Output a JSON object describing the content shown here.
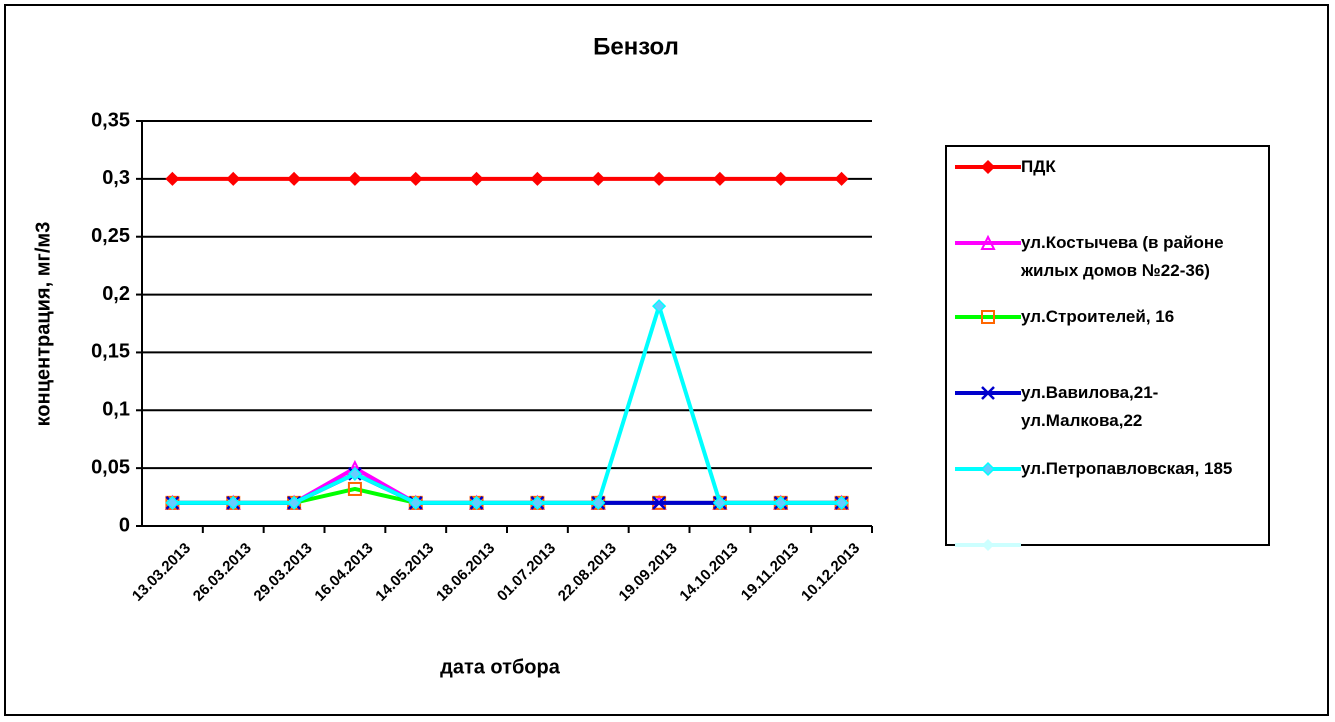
{
  "chart_data": {
    "type": "line",
    "title": "Бензол",
    "x_label": "дата отбора",
    "y_label": "концентрация, мг/м3",
    "categories": [
      "13.03.2013",
      "26.03.2013",
      "29.03.2013",
      "16.04.2013",
      "14.05.2013",
      "18.06.2013",
      "01.07.2013",
      "22.08.2013",
      "19.09.2013",
      "14.10.2013",
      "19.11.2013",
      "10.12.2013"
    ],
    "ylim": [
      0,
      0.35
    ],
    "yticks": [
      0,
      {
        "value": 0.05,
        "label": "0,05"
      },
      {
        "value": 0.1,
        "label": "0,1"
      },
      {
        "value": 0.15,
        "label": "0,15"
      },
      {
        "value": 0.2,
        "label": "0,2"
      },
      {
        "value": 0.25,
        "label": "0,25"
      },
      {
        "value": 0.3,
        "label": "0,3"
      },
      {
        "value": 0.35,
        "label": "0,35"
      }
    ],
    "grid": true,
    "legend": "right",
    "series": [
      {
        "name": "ПДК",
        "color": "#ff0000",
        "marker": "diamond",
        "values": [
          0.3,
          0.3,
          0.3,
          0.3,
          0.3,
          0.3,
          0.3,
          0.3,
          0.3,
          0.3,
          0.3,
          0.3
        ]
      },
      {
        "name": "ул.Костычева (в районе жилых домов №22-36)",
        "color": "#ff00ff",
        "marker": "triangle",
        "values": [
          0.02,
          0.02,
          0.02,
          0.05,
          0.02,
          0.02,
          0.02,
          0.02,
          0.02,
          0.02,
          0.02,
          0.02
        ]
      },
      {
        "name": "ул.Строителей, 16",
        "color": "#00ff00",
        "marker": "square",
        "values": [
          0.02,
          0.02,
          0.02,
          0.032,
          0.02,
          0.02,
          0.02,
          0.02,
          0.02,
          0.02,
          0.02,
          0.02
        ]
      },
      {
        "name": "ул.Вавилова,21-ул.Малкова,22",
        "color": "#0000cc",
        "marker": "x",
        "values": [
          0.02,
          0.02,
          0.02,
          0.045,
          0.02,
          0.02,
          0.02,
          0.02,
          0.02,
          0.02,
          0.02,
          0.02
        ]
      },
      {
        "name": "ул.Петропавловская, 185",
        "color": "#00ffff",
        "marker": "diamond",
        "values": [
          0.02,
          0.02,
          0.02,
          0.045,
          0.02,
          0.02,
          0.02,
          0.02,
          0.19,
          0.02,
          0.02,
          0.02
        ]
      }
    ]
  }
}
